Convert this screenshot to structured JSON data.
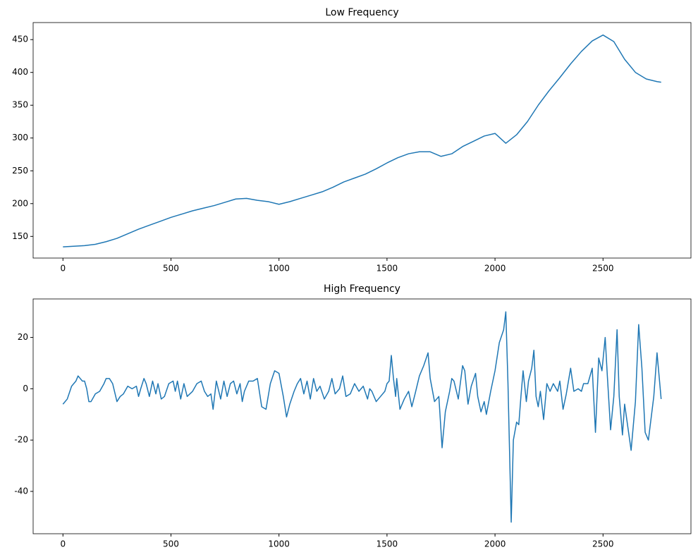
{
  "chart_data": [
    {
      "type": "line",
      "title": "Low Frequency",
      "x": [
        0,
        50,
        100,
        150,
        200,
        250,
        300,
        350,
        400,
        450,
        500,
        550,
        600,
        650,
        700,
        750,
        800,
        850,
        900,
        950,
        1000,
        1050,
        1100,
        1150,
        1200,
        1250,
        1300,
        1350,
        1400,
        1450,
        1500,
        1550,
        1600,
        1650,
        1700,
        1750,
        1800,
        1850,
        1900,
        1950,
        2000,
        2050,
        2100,
        2150,
        2200,
        2250,
        2300,
        2350,
        2400,
        2450,
        2500,
        2550,
        2600,
        2650,
        2700,
        2750,
        2769
      ],
      "series": [
        {
          "color": "#1f77b4",
          "values": [
            134,
            135,
            136,
            138,
            142,
            147,
            154,
            161,
            167,
            173,
            179,
            184,
            189,
            193,
            197,
            202,
            207,
            208,
            205,
            203,
            199,
            203,
            208,
            213,
            218,
            225,
            233,
            239,
            245,
            253,
            262,
            270,
            276,
            279,
            279,
            272,
            276,
            287,
            295,
            303,
            307,
            292,
            305,
            325,
            350,
            372,
            392,
            413,
            432,
            448,
            457,
            447,
            420,
            400,
            390,
            386,
            385
          ]
        }
      ],
      "xlim": [
        -138,
        2907
      ],
      "xticks": [
        0,
        500,
        1000,
        1500,
        2000,
        2500
      ],
      "ylim": [
        117,
        476
      ],
      "yticks": [
        150,
        200,
        250,
        300,
        350,
        400,
        450
      ]
    },
    {
      "type": "line",
      "title": "High Frequency",
      "x": [
        0,
        20,
        40,
        60,
        70,
        90,
        100,
        110,
        120,
        130,
        150,
        170,
        190,
        200,
        215,
        230,
        250,
        265,
        280,
        300,
        320,
        340,
        350,
        360,
        375,
        385,
        400,
        415,
        430,
        440,
        455,
        470,
        490,
        510,
        520,
        530,
        545,
        560,
        575,
        600,
        620,
        640,
        655,
        670,
        685,
        695,
        710,
        730,
        745,
        760,
        775,
        790,
        805,
        820,
        830,
        840,
        860,
        880,
        900,
        920,
        940,
        960,
        980,
        1000,
        1020,
        1035,
        1050,
        1070,
        1085,
        1100,
        1115,
        1130,
        1145,
        1160,
        1175,
        1190,
        1210,
        1230,
        1245,
        1260,
        1280,
        1295,
        1310,
        1330,
        1350,
        1370,
        1390,
        1410,
        1420,
        1430,
        1450,
        1470,
        1490,
        1500,
        1510,
        1520,
        1530,
        1540,
        1545,
        1560,
        1580,
        1600,
        1615,
        1630,
        1650,
        1670,
        1690,
        1700,
        1720,
        1740,
        1755,
        1770,
        1790,
        1800,
        1810,
        1830,
        1850,
        1860,
        1875,
        1890,
        1910,
        1920,
        1935,
        1950,
        1960,
        1980,
        2000,
        2020,
        2040,
        2050,
        2060,
        2075,
        2085,
        2100,
        2110,
        2120,
        2130,
        2145,
        2155,
        2170,
        2180,
        2190,
        2200,
        2210,
        2225,
        2240,
        2255,
        2270,
        2290,
        2300,
        2315,
        2330,
        2350,
        2365,
        2385,
        2400,
        2410,
        2430,
        2450,
        2465,
        2480,
        2495,
        2510,
        2520,
        2535,
        2550,
        2565,
        2575,
        2590,
        2600,
        2615,
        2630,
        2650,
        2665,
        2680,
        2695,
        2710,
        2735,
        2750,
        2769
      ],
      "series": [
        {
          "color": "#1f77b4",
          "values": [
            -6,
            -4,
            1,
            3,
            5,
            3,
            3,
            0,
            -5,
            -5,
            -2,
            -1,
            2,
            4,
            4,
            2,
            -5,
            -3,
            -2,
            1,
            0,
            1,
            -3,
            0,
            4,
            2,
            -3,
            3,
            -2,
            2,
            -4,
            -3,
            2,
            3,
            -1,
            3,
            -4,
            2,
            -3,
            -1,
            2,
            3,
            -1,
            -3,
            -2,
            -8,
            3,
            -4,
            3,
            -3,
            2,
            3,
            -2,
            2,
            -5,
            -1,
            3,
            3,
            4,
            -7,
            -8,
            2,
            7,
            6,
            -3,
            -11,
            -6,
            -1,
            2,
            4,
            -2,
            3,
            -4,
            4,
            -1,
            1,
            -4,
            -1,
            4,
            -2,
            0,
            5,
            -3,
            -2,
            2,
            -1,
            1,
            -4,
            0,
            -1,
            -5,
            -3,
            -1,
            2,
            3,
            13,
            4,
            -3,
            4,
            -8,
            -4,
            -1,
            -7,
            -2,
            5,
            9,
            14,
            4,
            -5,
            -3,
            -23,
            -9,
            -1,
            4,
            3,
            -4,
            9,
            7,
            -6,
            1,
            6,
            -3,
            -9,
            -5,
            -10,
            -1,
            7,
            18,
            23,
            30,
            2,
            -52,
            -20,
            -13,
            -14,
            -3,
            7,
            -5,
            3,
            8,
            15,
            -3,
            -7,
            -1,
            -12,
            2,
            -1,
            2,
            -1,
            3,
            -8,
            -2,
            8,
            -1,
            0,
            -1,
            2,
            2,
            8,
            -17,
            12,
            7,
            20,
            5,
            -16,
            -3,
            23,
            -3,
            -18,
            -6,
            -15,
            -24,
            -5,
            25,
            8,
            -17,
            -20,
            -3,
            14,
            -4
          ]
        }
      ],
      "xlim": [
        -138,
        2907
      ],
      "xticks": [
        0,
        500,
        1000,
        1500,
        2000,
        2500
      ],
      "ylim": [
        -56.5,
        35
      ],
      "yticks": [
        -40,
        -20,
        0,
        20
      ]
    }
  ]
}
